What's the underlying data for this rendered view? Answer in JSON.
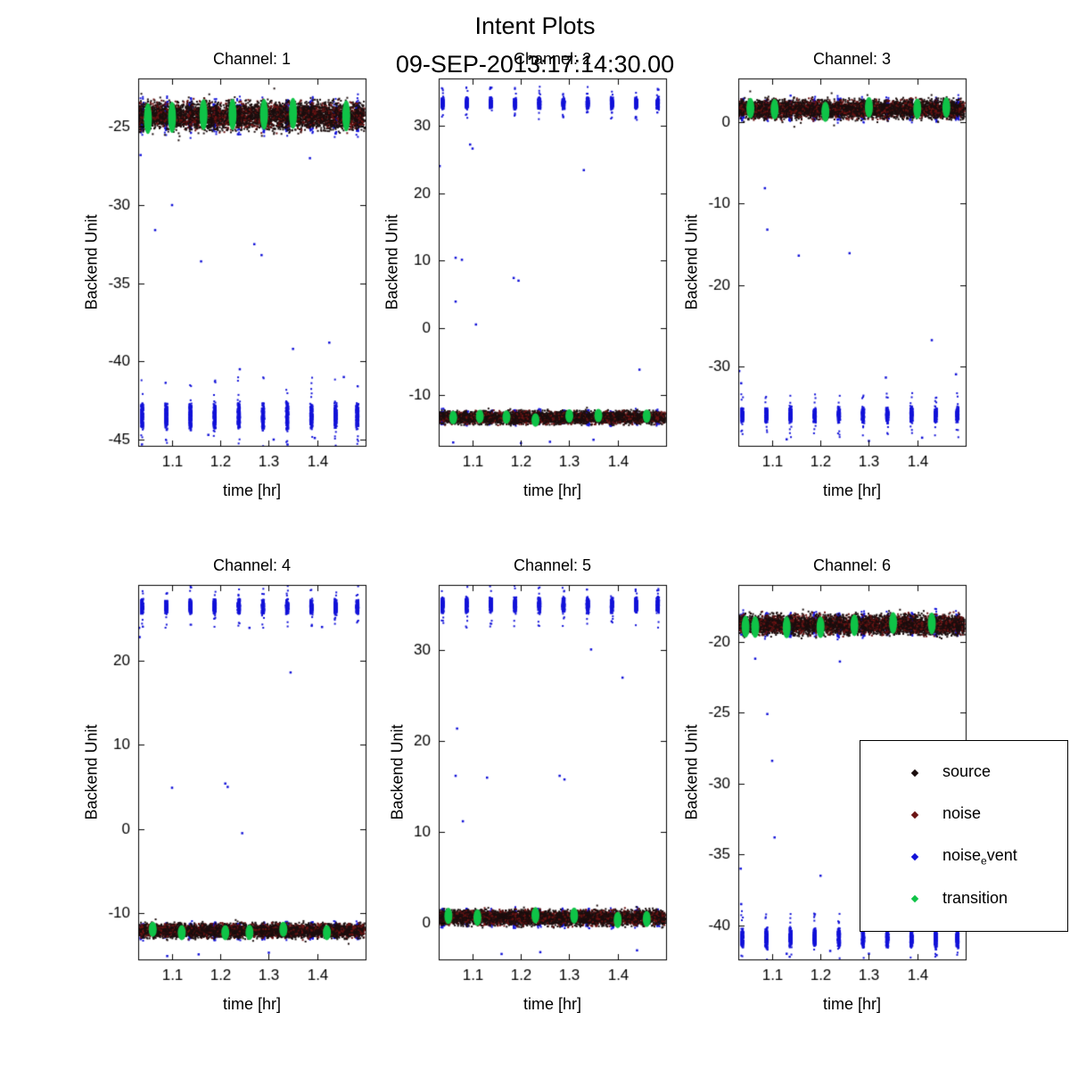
{
  "figure": {
    "title": "Intent Plots",
    "subtitle": "09-SEP-2013:17:14:30.00"
  },
  "legend": {
    "items": [
      {
        "pre": "source",
        "sub": "",
        "suf": "",
        "color": "#1b0e0e"
      },
      {
        "pre": "noise",
        "sub": "",
        "suf": "",
        "color": "#6b1313"
      },
      {
        "pre": "noise",
        "sub": "e",
        "suf": "vent",
        "color": "#1212d8"
      },
      {
        "pre": "transition",
        "sub": "",
        "suf": "",
        "color": "#0fc347"
      }
    ]
  },
  "chart_data": {
    "type": "scatter",
    "layout": {
      "grid": "2x3",
      "legend_position": "bottom-right, overlapping Channel 6",
      "grid_lines": "off"
    },
    "series_names": [
      "source",
      "noise",
      "noise_event",
      "transition"
    ],
    "colors": {
      "source": "#1b0e0e",
      "noise": "#6b1313",
      "noise_event": "#1212d8",
      "transition": "#0fc347"
    },
    "charts": [
      {
        "title": "Channel: 1",
        "xlabel": "time [hr]",
        "ylabel": "Backend Unit",
        "xlim": [
          1.03,
          1.5
        ],
        "ylim": [
          -45.4,
          -21.9
        ],
        "xticks": [
          1.1,
          1.2,
          1.3,
          1.4
        ],
        "yticks": [
          -25,
          -30,
          -35,
          -40,
          -45
        ],
        "source_noise_band": {
          "center": -24.3,
          "halfwidth": 1.1
        },
        "event_cluster_level": {
          "center": -43.5,
          "halfwidth": 1.0
        },
        "event_times": [
          1.038,
          1.088,
          1.138,
          1.188,
          1.238,
          1.288,
          1.338,
          1.388,
          1.438,
          1.483
        ],
        "transition_times": [
          1.05,
          1.1,
          1.165,
          1.225,
          1.29,
          1.35,
          1.46
        ],
        "isolated_event_points": [
          [
            1.065,
            -31.6
          ],
          [
            1.1,
            -30.0
          ],
          [
            1.16,
            -33.6
          ],
          [
            1.27,
            -32.5
          ],
          [
            1.285,
            -33.2
          ],
          [
            1.385,
            -27.0
          ],
          [
            1.35,
            -39.2
          ],
          [
            1.425,
            -38.8
          ],
          [
            1.24,
            -40.5
          ],
          [
            1.455,
            -41.0
          ],
          [
            1.175,
            -44.7
          ],
          [
            1.31,
            -45.0
          ],
          [
            1.395,
            -44.9
          ],
          [
            1.035,
            -26.8
          ]
        ]
      },
      {
        "title": "Channel: 2",
        "xlabel": "time [hr]",
        "ylabel": "Backend Unit",
        "xlim": [
          1.03,
          1.5
        ],
        "ylim": [
          -17.5,
          37.0
        ],
        "xticks": [
          1.1,
          1.2,
          1.3,
          1.4
        ],
        "yticks": [
          30,
          20,
          10,
          0,
          -10
        ],
        "source_noise_band": {
          "center": -13.3,
          "halfwidth": 1.1
        },
        "event_cluster_level": {
          "center": 33.3,
          "halfwidth": 1.0
        },
        "event_times": [
          1.038,
          1.088,
          1.138,
          1.188,
          1.238,
          1.288,
          1.338,
          1.388,
          1.438,
          1.483
        ],
        "transition_times": [
          1.06,
          1.115,
          1.17,
          1.23,
          1.3,
          1.36,
          1.46
        ],
        "isolated_event_points": [
          [
            1.095,
            27.2
          ],
          [
            1.1,
            26.6
          ],
          [
            1.032,
            24.0
          ],
          [
            1.065,
            10.4
          ],
          [
            1.078,
            10.1
          ],
          [
            1.185,
            7.4
          ],
          [
            1.195,
            7.0
          ],
          [
            1.107,
            0.5
          ],
          [
            1.065,
            3.9
          ],
          [
            1.33,
            23.4
          ],
          [
            1.445,
            -6.2
          ],
          [
            1.26,
            -16.9
          ],
          [
            1.35,
            -16.6
          ],
          [
            1.06,
            -17.0
          ],
          [
            1.2,
            -17.1
          ]
        ]
      },
      {
        "title": "Channel: 3",
        "xlabel": "time [hr]",
        "ylabel": "Backend Unit",
        "xlim": [
          1.03,
          1.5
        ],
        "ylim": [
          -39.8,
          5.4
        ],
        "xticks": [
          1.1,
          1.2,
          1.3,
          1.4
        ],
        "yticks": [
          0,
          -10,
          -20,
          -30
        ],
        "source_noise_band": {
          "center": 1.6,
          "halfwidth": 1.4
        },
        "event_cluster_level": {
          "center": -36.0,
          "halfwidth": 1.1
        },
        "event_times": [
          1.038,
          1.088,
          1.138,
          1.188,
          1.238,
          1.288,
          1.338,
          1.388,
          1.438,
          1.483
        ],
        "transition_times": [
          1.055,
          1.105,
          1.21,
          1.3,
          1.4,
          1.46
        ],
        "isolated_event_points": [
          [
            1.085,
            -8.1
          ],
          [
            1.09,
            -13.2
          ],
          [
            1.155,
            -16.4
          ],
          [
            1.26,
            -16.1
          ],
          [
            1.43,
            -26.8
          ],
          [
            1.335,
            -31.4
          ],
          [
            1.48,
            -31.0
          ],
          [
            1.032,
            -30.6
          ],
          [
            1.036,
            -32.1
          ],
          [
            1.13,
            -39.0
          ],
          [
            1.3,
            -39.2
          ],
          [
            1.41,
            -38.8
          ]
        ]
      },
      {
        "title": "Channel: 4",
        "xlabel": "time [hr]",
        "ylabel": "Backend Unit",
        "xlim": [
          1.03,
          1.5
        ],
        "ylim": [
          -15.5,
          29.0
        ],
        "xticks": [
          1.1,
          1.2,
          1.3,
          1.4
        ],
        "yticks": [
          20,
          10,
          0,
          -10
        ],
        "source_noise_band": {
          "center": -12.1,
          "halfwidth": 1.0
        },
        "event_cluster_level": {
          "center": 26.4,
          "halfwidth": 1.0
        },
        "event_times": [
          1.038,
          1.088,
          1.138,
          1.188,
          1.238,
          1.288,
          1.338,
          1.388,
          1.438,
          1.483
        ],
        "transition_times": [
          1.06,
          1.12,
          1.21,
          1.26,
          1.33,
          1.42
        ],
        "isolated_event_points": [
          [
            1.032,
            23.9
          ],
          [
            1.033,
            22.8
          ],
          [
            1.1,
            4.9
          ],
          [
            1.21,
            5.4
          ],
          [
            1.215,
            5.0
          ],
          [
            1.245,
            -0.5
          ],
          [
            1.345,
            18.6
          ],
          [
            1.26,
            23.9
          ],
          [
            1.155,
            -14.9
          ],
          [
            1.3,
            -14.7
          ],
          [
            1.09,
            -15.1
          ],
          [
            1.41,
            24.0
          ]
        ]
      },
      {
        "title": "Channel: 5",
        "xlabel": "time [hr]",
        "ylabel": "Backend Unit",
        "xlim": [
          1.03,
          1.5
        ],
        "ylim": [
          -4.0,
          37.2
        ],
        "xticks": [
          1.1,
          1.2,
          1.3,
          1.4
        ],
        "yticks": [
          30,
          20,
          10,
          0
        ],
        "source_noise_band": {
          "center": 0.6,
          "halfwidth": 1.0
        },
        "event_cluster_level": {
          "center": 35.0,
          "halfwidth": 1.0
        },
        "event_times": [
          1.038,
          1.088,
          1.138,
          1.188,
          1.238,
          1.288,
          1.338,
          1.388,
          1.438,
          1.483
        ],
        "transition_times": [
          1.05,
          1.11,
          1.23,
          1.31,
          1.4,
          1.46
        ],
        "isolated_event_points": [
          [
            1.065,
            16.2
          ],
          [
            1.08,
            11.2
          ],
          [
            1.13,
            16.0
          ],
          [
            1.28,
            16.2
          ],
          [
            1.29,
            15.8
          ],
          [
            1.41,
            27.0
          ],
          [
            1.068,
            21.4
          ],
          [
            1.345,
            30.1
          ],
          [
            1.24,
            -3.2
          ],
          [
            1.16,
            -3.4
          ],
          [
            1.44,
            -3.0
          ]
        ]
      },
      {
        "title": "Channel: 6",
        "xlabel": "time [hr]",
        "ylabel": "Backend Unit",
        "xlim": [
          1.03,
          1.5
        ],
        "ylim": [
          -42.4,
          -16.0
        ],
        "xticks": [
          1.1,
          1.2,
          1.3,
          1.4
        ],
        "yticks": [
          -20,
          -25,
          -30,
          -35,
          -40
        ],
        "source_noise_band": {
          "center": -18.8,
          "halfwidth": 0.85
        },
        "event_cluster_level": {
          "center": -40.9,
          "halfwidth": 0.8
        },
        "event_times": [
          1.038,
          1.088,
          1.138,
          1.188,
          1.238,
          1.288,
          1.338,
          1.388,
          1.438,
          1.483
        ],
        "transition_times": [
          1.045,
          1.065,
          1.13,
          1.2,
          1.27,
          1.35,
          1.43
        ],
        "isolated_event_points": [
          [
            1.09,
            -25.1
          ],
          [
            1.1,
            -28.4
          ],
          [
            1.105,
            -33.8
          ],
          [
            1.13,
            -42.0
          ],
          [
            1.22,
            -41.8
          ],
          [
            1.24,
            -21.4
          ],
          [
            1.065,
            -21.2
          ],
          [
            1.035,
            -36.0
          ],
          [
            1.036,
            -38.5
          ],
          [
            1.3,
            -42.0
          ],
          [
            1.44,
            -42.1
          ],
          [
            1.2,
            -36.5
          ]
        ]
      }
    ]
  }
}
